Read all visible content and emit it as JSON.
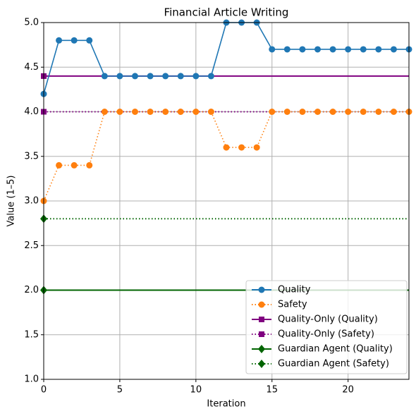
{
  "chart_data": {
    "type": "line",
    "title": "Financial Article Writing",
    "xlabel": "Iteration",
    "ylabel": "Value (1–5)",
    "x": [
      0,
      1,
      2,
      3,
      4,
      5,
      6,
      7,
      8,
      9,
      10,
      11,
      12,
      13,
      14,
      15,
      16,
      17,
      18,
      19,
      20,
      21,
      22,
      23,
      24
    ],
    "series": [
      {
        "name": "Quality",
        "color": "#1f77b4",
        "linestyle": "solid",
        "marker": "circle",
        "values": [
          4.2,
          4.8,
          4.8,
          4.8,
          4.4,
          4.4,
          4.4,
          4.4,
          4.4,
          4.4,
          4.4,
          4.4,
          5.0,
          5.0,
          5.0,
          4.7,
          4.7,
          4.7,
          4.7,
          4.7,
          4.7,
          4.7,
          4.7,
          4.7,
          4.7
        ]
      },
      {
        "name": "Safety",
        "color": "#ff7f0e",
        "linestyle": "dotted",
        "marker": "circle",
        "values": [
          3.0,
          3.4,
          3.4,
          3.4,
          4.0,
          4.0,
          4.0,
          4.0,
          4.0,
          4.0,
          4.0,
          4.0,
          3.6,
          3.6,
          3.6,
          4.0,
          4.0,
          4.0,
          4.0,
          4.0,
          4.0,
          4.0,
          4.0,
          4.0,
          4.0
        ]
      }
    ],
    "hlines": [
      {
        "name": "Quality-Only (Quality)",
        "color": "#800080",
        "linestyle": "solid",
        "marker": "square",
        "value": 4.4
      },
      {
        "name": "Quality-Only (Safety)",
        "color": "#800080",
        "linestyle": "dotted",
        "marker": "square",
        "value": 4.0
      },
      {
        "name": "Guardian Agent (Quality)",
        "color": "#006400",
        "linestyle": "solid",
        "marker": "diamond",
        "value": 2.0
      },
      {
        "name": "Guardian Agent (Safety)",
        "color": "#006400",
        "linestyle": "dotted",
        "marker": "diamond",
        "value": 2.8
      }
    ],
    "xlim": [
      0,
      24
    ],
    "xticks": [
      0,
      5,
      10,
      15,
      20
    ],
    "ylim": [
      1,
      5
    ],
    "yticks": [
      {
        "value": 1,
        "label": "1.0"
      },
      {
        "value": 1.5,
        "label": "1.5"
      },
      {
        "value": 2,
        "label": "2.0"
      },
      {
        "value": 2.5,
        "label": "2.5"
      },
      {
        "value": 3,
        "label": "3.0"
      },
      {
        "value": 3.5,
        "label": "3.5"
      },
      {
        "value": 4,
        "label": "4.0"
      },
      {
        "value": 4.5,
        "label": "4.5"
      },
      {
        "value": 5,
        "label": "5.0"
      }
    ],
    "grid": true,
    "legend": "lower right"
  }
}
